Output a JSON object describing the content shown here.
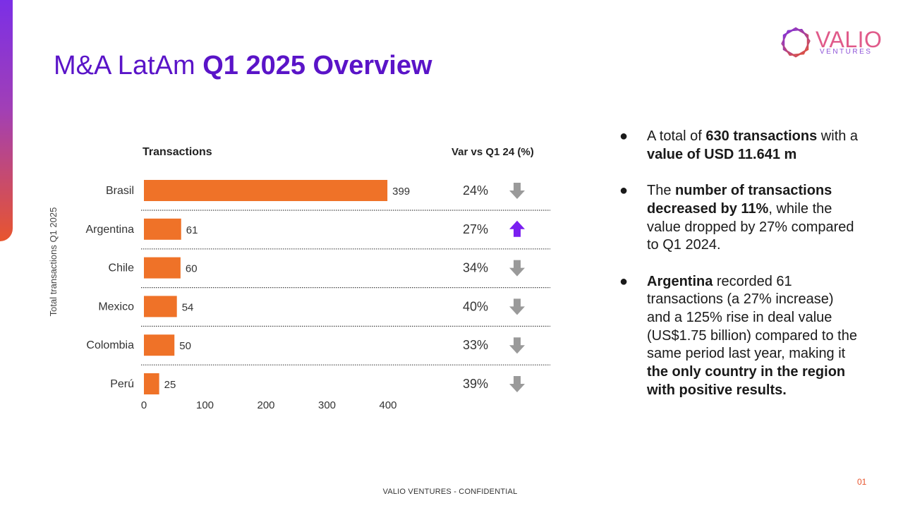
{
  "title": {
    "light": "M&A LatAm ",
    "bold": "Q1 2025 Overview"
  },
  "logo": {
    "name": "VALIO",
    "subtitle": "VENTURES"
  },
  "chart_data": {
    "type": "bar",
    "orientation": "horizontal",
    "title": "Transactions",
    "secondary_column_title": "Var vs Q1 24 (%)",
    "ylabel": "Total transactions Q1 2025",
    "categories": [
      "Brasil",
      "Argentina",
      "Chile",
      "Mexico",
      "Colombia",
      "Perú"
    ],
    "values": [
      399,
      61,
      60,
      54,
      50,
      25
    ],
    "var_pct": [
      "24%",
      "27%",
      "34%",
      "40%",
      "33%",
      "39%"
    ],
    "var_direction": [
      "down",
      "up",
      "down",
      "down",
      "down",
      "down"
    ],
    "xlim": [
      0,
      400
    ],
    "xticks": [
      0,
      100,
      200,
      300,
      400
    ],
    "bar_color": "#ef7228",
    "up_color": "#7a1ff0",
    "down_color": "#9a9a9a",
    "grid": false
  },
  "bullets": [
    {
      "parts": [
        {
          "t": "A total of ",
          "b": false
        },
        {
          "t": "630 transactions",
          "b": true
        },
        {
          "t": " with a ",
          "b": false
        },
        {
          "t": "value of USD 11.641 m",
          "b": true
        }
      ]
    },
    {
      "parts": [
        {
          "t": "The ",
          "b": false
        },
        {
          "t": "number of transactions decreased by 11%",
          "b": true
        },
        {
          "t": ", while the value dropped by 27% compared to Q1  2024.",
          "b": false
        }
      ]
    },
    {
      "parts": [
        {
          "t": "Argentina",
          "b": true
        },
        {
          "t": " recorded 61 transactions (a 27% increase) and a 125% rise in deal value (US$1.75 billion) compared to the same period last year, making it ",
          "b": false
        },
        {
          "t": "the only country in the region with positive results.",
          "b": true
        }
      ]
    }
  ],
  "footer": "VALIO VENTURES - CONFIDENTIAL",
  "page_number": "01"
}
